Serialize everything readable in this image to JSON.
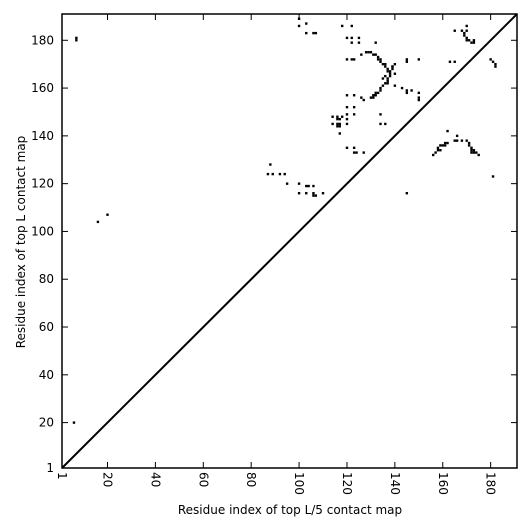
{
  "chart_data": {
    "type": "scatter",
    "title": "",
    "xlabel": "Residue index of top L/5 contact map",
    "ylabel": "Residue index of top L contact map",
    "xlim": [
      1,
      191
    ],
    "ylim": [
      1,
      191
    ],
    "x_ticks": [
      1,
      20,
      40,
      60,
      80,
      100,
      120,
      140,
      160,
      180
    ],
    "y_ticks": [
      1,
      20,
      40,
      60,
      80,
      100,
      120,
      140,
      160,
      180
    ],
    "x_tick_labels": [
      "1",
      "20",
      "40",
      "60",
      "80",
      "100",
      "120",
      "140",
      "160",
      "180"
    ],
    "y_tick_labels": [
      "1",
      "20",
      "40",
      "60",
      "80",
      "100",
      "120",
      "140",
      "160",
      "180"
    ],
    "x_tick_label_rotation": "vertical",
    "diagonal": true,
    "grid": false,
    "marker": "black square",
    "series": [
      {
        "name": "",
        "points": [
          [
            7,
            180
          ],
          [
            7,
            181
          ],
          [
            6,
            20
          ],
          [
            16,
            104
          ],
          [
            20,
            107
          ],
          [
            100,
            186
          ],
          [
            100,
            189
          ],
          [
            103,
            187
          ],
          [
            103,
            183
          ],
          [
            106,
            183
          ],
          [
            107,
            183
          ],
          [
            118,
            186
          ],
          [
            120,
            181
          ],
          [
            122,
            186
          ],
          [
            122,
            179
          ],
          [
            122,
            181
          ],
          [
            125,
            179
          ],
          [
            125,
            181
          ],
          [
            120,
            172
          ],
          [
            122,
            172
          ],
          [
            123,
            172
          ],
          [
            126,
            174
          ],
          [
            132,
            179
          ],
          [
            128,
            175
          ],
          [
            129,
            175
          ],
          [
            130,
            175
          ],
          [
            131,
            174
          ],
          [
            132,
            174
          ],
          [
            133,
            173
          ],
          [
            133,
            172
          ],
          [
            134,
            172
          ],
          [
            134,
            171
          ],
          [
            135,
            170
          ],
          [
            136,
            170
          ],
          [
            136,
            169
          ],
          [
            137,
            168
          ],
          [
            137,
            167
          ],
          [
            138,
            167
          ],
          [
            139,
            168
          ],
          [
            139,
            169
          ],
          [
            138,
            166
          ],
          [
            138,
            165
          ],
          [
            137,
            164
          ],
          [
            137,
            163
          ],
          [
            136,
            162
          ],
          [
            137,
            162
          ],
          [
            135,
            161
          ],
          [
            134,
            160
          ],
          [
            134,
            159
          ],
          [
            133,
            158
          ],
          [
            132,
            158
          ],
          [
            132,
            157
          ],
          [
            131,
            157
          ],
          [
            131,
            156
          ],
          [
            130,
            156
          ],
          [
            136,
            165
          ],
          [
            135,
            164
          ],
          [
            139,
            169
          ],
          [
            140,
            170
          ],
          [
            140,
            166
          ],
          [
            143,
            160
          ],
          [
            145,
            159
          ],
          [
            145,
            158
          ],
          [
            147,
            159
          ],
          [
            150,
            158
          ],
          [
            150,
            156
          ],
          [
            150,
            155
          ],
          [
            140,
            161
          ],
          [
            145,
            172
          ],
          [
            145,
            171
          ],
          [
            150,
            172
          ],
          [
            163,
            171
          ],
          [
            165,
            171
          ],
          [
            165,
            184
          ],
          [
            168,
            184
          ],
          [
            169,
            183
          ],
          [
            169,
            182
          ],
          [
            170,
            181
          ],
          [
            170,
            180
          ],
          [
            171,
            180
          ],
          [
            172,
            179
          ],
          [
            173,
            179
          ],
          [
            173,
            180
          ],
          [
            170,
            186
          ],
          [
            170,
            184
          ],
          [
            180,
            172
          ],
          [
            181,
            171
          ],
          [
            182,
            170
          ],
          [
            182,
            169
          ],
          [
            120,
            157
          ],
          [
            123,
            157
          ],
          [
            126,
            156
          ],
          [
            127,
            155
          ],
          [
            120,
            152
          ],
          [
            123,
            152
          ],
          [
            123,
            149
          ],
          [
            120,
            149
          ],
          [
            118,
            148
          ],
          [
            120,
            147
          ],
          [
            116,
            148
          ],
          [
            116,
            147
          ],
          [
            117,
            147
          ],
          [
            116,
            145
          ],
          [
            117,
            145
          ],
          [
            116,
            144
          ],
          [
            117,
            144
          ],
          [
            114,
            148
          ],
          [
            114,
            145
          ],
          [
            134,
            149
          ],
          [
            134,
            145
          ],
          [
            136,
            145
          ],
          [
            120,
            145
          ],
          [
            117,
            141
          ],
          [
            120,
            135
          ],
          [
            123,
            135
          ],
          [
            124,
            133
          ],
          [
            127,
            133
          ],
          [
            123,
            133
          ],
          [
            162,
            142
          ],
          [
            166,
            140
          ],
          [
            165,
            138
          ],
          [
            166,
            138
          ],
          [
            168,
            138
          ],
          [
            170,
            138
          ],
          [
            171,
            137
          ],
          [
            171,
            136
          ],
          [
            172,
            135
          ],
          [
            172,
            134
          ],
          [
            173,
            134
          ],
          [
            173,
            133
          ],
          [
            174,
            133
          ],
          [
            175,
            132
          ],
          [
            172,
            133
          ],
          [
            158,
            135
          ],
          [
            159,
            136
          ],
          [
            160,
            136
          ],
          [
            161,
            136
          ],
          [
            162,
            137
          ],
          [
            161,
            137
          ],
          [
            159,
            134
          ],
          [
            158,
            134
          ],
          [
            157,
            133
          ],
          [
            156,
            132
          ],
          [
            88,
            128
          ],
          [
            87,
            124
          ],
          [
            89,
            124
          ],
          [
            92,
            124
          ],
          [
            94,
            124
          ],
          [
            95,
            120
          ],
          [
            100,
            120
          ],
          [
            103,
            119
          ],
          [
            104,
            119
          ],
          [
            106,
            119
          ],
          [
            100,
            116
          ],
          [
            103,
            116
          ],
          [
            106,
            116
          ],
          [
            106,
            115
          ],
          [
            107,
            115
          ],
          [
            110,
            116
          ],
          [
            145,
            116
          ],
          [
            181,
            123
          ]
        ]
      }
    ]
  }
}
